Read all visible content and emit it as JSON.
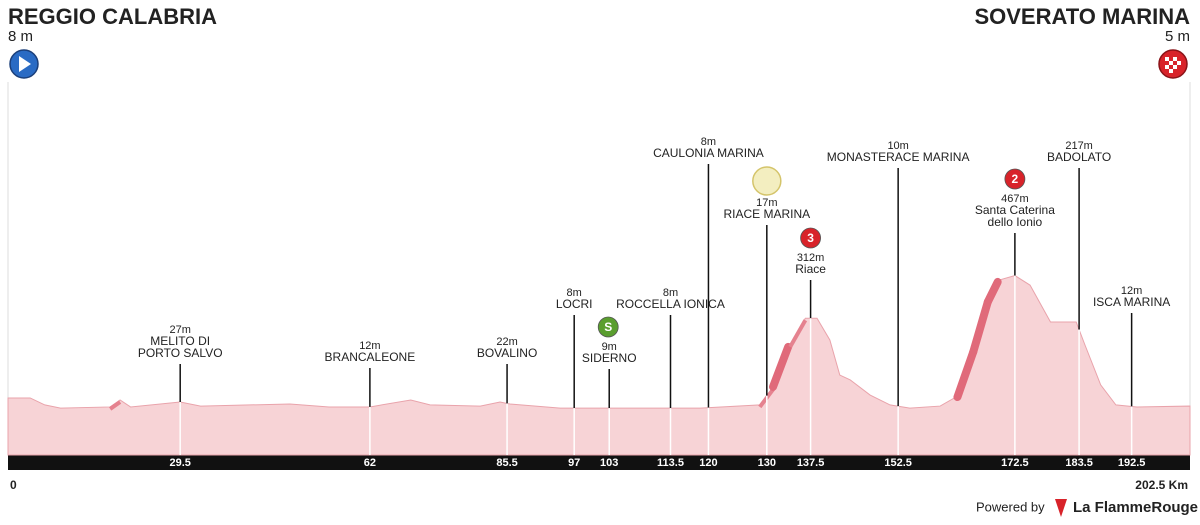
{
  "header": {
    "start": "REGGIO CALABRIA",
    "start_altitude": "8 m",
    "finish": "SOVERATO MARINA",
    "finish_altitude": "5 m"
  },
  "chart_data": {
    "type": "area",
    "x": [
      0,
      3.8,
      6.3,
      9,
      17.5,
      19.2,
      21,
      29.5,
      33,
      41.5,
      48.3,
      55,
      62,
      69,
      72.3,
      80.9,
      84.3,
      86,
      94.6,
      103,
      118.6,
      128.8,
      131.4,
      134,
      136.6,
      138.6,
      140.8,
      142.5,
      144.3,
      147.7,
      151.1,
      154.5,
      159.7,
      163,
      165.7,
      168.2,
      169.9,
      172.5,
      175.1,
      178.6,
      183,
      184.5,
      187.2,
      189.8,
      193.4,
      202.5
    ],
    "values": [
      45,
      45,
      21,
      10,
      14,
      38,
      14,
      31,
      17,
      21,
      24,
      14,
      14,
      38,
      21,
      17,
      31,
      24,
      10,
      10,
      10,
      21,
      90,
      228,
      320,
      320,
      245,
      124,
      107,
      55,
      21,
      10,
      17,
      55,
      210,
      383,
      452,
      467,
      434,
      307,
      307,
      228,
      90,
      21,
      14,
      17
    ],
    "color": "#f7d3d6",
    "xlim": [
      0,
      202.5
    ],
    "ylim": [
      0,
      500
    ],
    "xticks": [
      0,
      {
        "value": 202.5,
        "label": "202.5 Km"
      }
    ],
    "waypoints": [
      {
        "km": 29.5,
        "elevation": "27m",
        "name": [
          "MELITO DI",
          "PORTO SALVO"
        ]
      },
      {
        "km": 62,
        "elevation": "12m",
        "name": [
          "BRANCALEONE"
        ]
      },
      {
        "km": 85.5,
        "elevation": "22m",
        "name": [
          "BOVALINO"
        ]
      },
      {
        "km": 97,
        "elevation": "8m",
        "name": [
          "LOCRI"
        ]
      },
      {
        "km": 103,
        "badge": "S",
        "elevation": "9m",
        "name": [
          "SIDERNO"
        ]
      },
      {
        "km": 113.5,
        "elevation": "8m",
        "name": [
          "ROCCELLA IONICA"
        ]
      },
      {
        "km": 120,
        "elevation": "8m",
        "name": [
          "CAULONIA MARINA"
        ]
      },
      {
        "km": 130,
        "elevation": "17m",
        "name": [
          "RIACE MARINA"
        ]
      },
      {
        "km": 137.5,
        "badge": "3",
        "elevation": "312m",
        "name": [
          "Riace"
        ]
      },
      {
        "km": 152.5,
        "elevation": "10m",
        "name": [
          "MONASTERACE MARINA"
        ]
      },
      {
        "km": 172.5,
        "badge": "2",
        "elevation": "467m",
        "name": [
          "Santa Caterina",
          "dello Ionio"
        ]
      },
      {
        "km": 183.5,
        "elevation": "217m",
        "name": [
          "BADOLATO"
        ]
      },
      {
        "km": 192.5,
        "elevation": "12m",
        "name": [
          "ISCA MARINA"
        ]
      }
    ]
  },
  "footer": {
    "powered_by": "Powered by",
    "brand": "La FlammeRouge"
  }
}
